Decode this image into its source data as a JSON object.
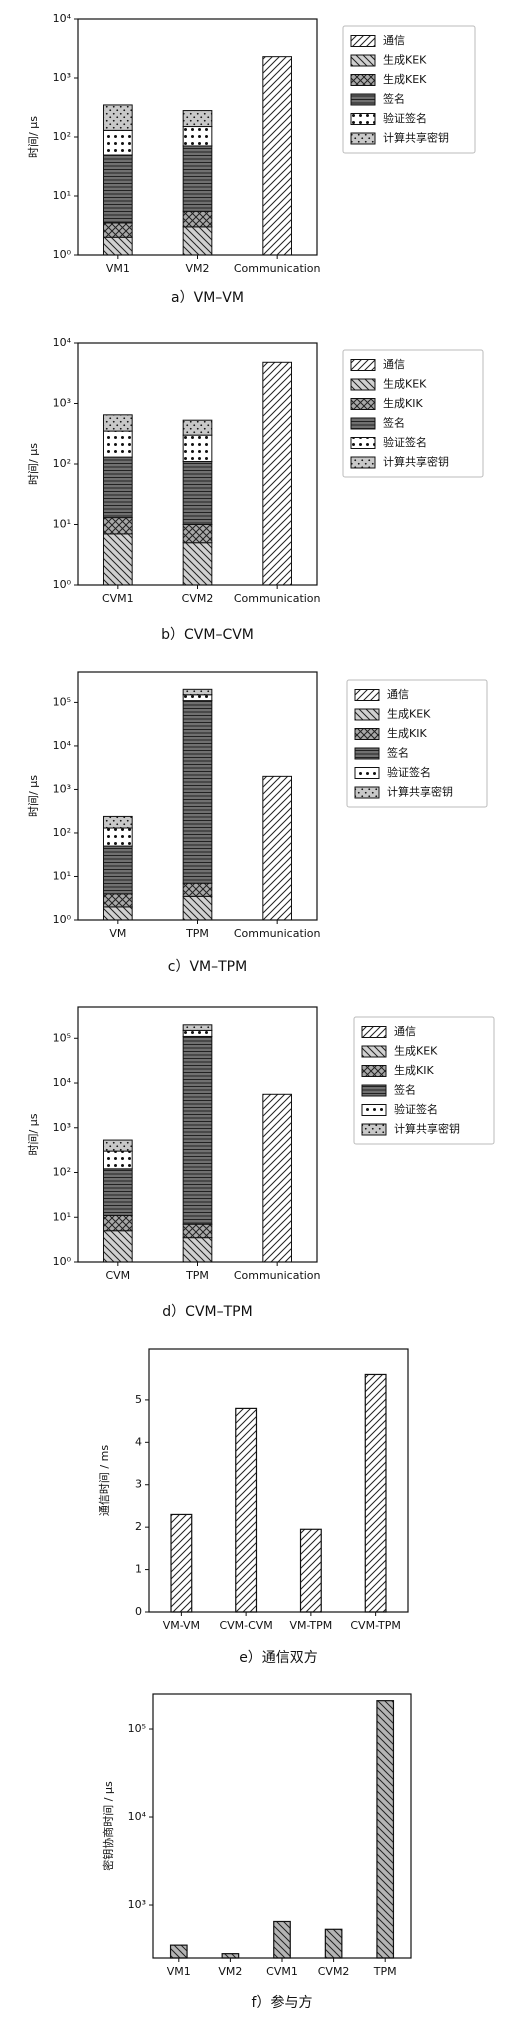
{
  "chart_data": [
    {
      "type": "bar",
      "stacked": true,
      "log": true,
      "caption": "a）VM–VM",
      "ylabel": "时间/ μs",
      "categories": [
        "VM1",
        "VM2",
        "Communication"
      ],
      "ylim": [
        1,
        10000
      ],
      "yticks": [
        {
          "value": 1,
          "label": "10⁰"
        },
        {
          "value": 10,
          "label": "10¹"
        },
        {
          "value": 100,
          "label": "10²"
        },
        {
          "value": 1000,
          "label": "10³"
        },
        {
          "value": 10000,
          "label": "10⁴"
        }
      ],
      "legend": "right",
      "series": [
        {
          "name": "通信",
          "color": "#ffffff",
          "hatch": "/",
          "values": [
            null,
            null,
            2300
          ]
        },
        {
          "name": "生成KEK",
          "color": "#d0d0d0",
          "hatch": "\\",
          "values": [
            2,
            3,
            null
          ]
        },
        {
          "name": "生成KEK",
          "color": "#a8a8a8",
          "hatch": "x",
          "values": [
            1.5,
            2.5,
            null
          ]
        },
        {
          "name": "签名",
          "color": "#707070",
          "hatch": "-",
          "values": [
            46,
            65,
            null
          ]
        },
        {
          "name": "验证签名",
          "color": "#ffffff",
          "hatch": "o",
          "values": [
            80,
            80,
            null
          ]
        },
        {
          "name": "计算共享密钥",
          "color": "#c8c8c8",
          "hatch": ".",
          "values": [
            220,
            130,
            null
          ]
        }
      ]
    },
    {
      "type": "bar",
      "stacked": true,
      "log": true,
      "caption": "b）CVM–CVM",
      "ylabel": "时间/ μs",
      "categories": [
        "CVM1",
        "CVM2",
        "Communication"
      ],
      "ylim": [
        1,
        10000
      ],
      "yticks": [
        {
          "value": 1,
          "label": "10⁰"
        },
        {
          "value": 10,
          "label": "10¹"
        },
        {
          "value": 100,
          "label": "10²"
        },
        {
          "value": 1000,
          "label": "10³"
        },
        {
          "value": 10000,
          "label": "10⁴"
        }
      ],
      "legend": "right",
      "series": [
        {
          "name": "通信",
          "color": "#ffffff",
          "hatch": "/",
          "values": [
            null,
            null,
            4800
          ]
        },
        {
          "name": "生成KEK",
          "color": "#d0d0d0",
          "hatch": "\\",
          "values": [
            7,
            5,
            null
          ]
        },
        {
          "name": "生成KIK",
          "color": "#a8a8a8",
          "hatch": "x",
          "values": [
            6,
            5,
            null
          ]
        },
        {
          "name": "签名",
          "color": "#707070",
          "hatch": "-",
          "values": [
            117,
            100,
            null
          ]
        },
        {
          "name": "验证签名",
          "color": "#ffffff",
          "hatch": "o",
          "values": [
            220,
            190,
            null
          ]
        },
        {
          "name": "计算共享密钥",
          "color": "#c8c8c8",
          "hatch": ".",
          "values": [
            300,
            230,
            null
          ]
        }
      ]
    },
    {
      "type": "bar",
      "stacked": true,
      "log": true,
      "caption": "c）VM–TPM",
      "ylabel": "时间/ μs",
      "categories": [
        "VM",
        "TPM",
        "Communication"
      ],
      "ylim": [
        1,
        500000
      ],
      "yticks": [
        {
          "value": 1,
          "label": "10⁰"
        },
        {
          "value": 10,
          "label": "10¹"
        },
        {
          "value": 100,
          "label": "10²"
        },
        {
          "value": 1000,
          "label": "10³"
        },
        {
          "value": 10000,
          "label": "10⁴"
        },
        {
          "value": 100000,
          "label": "10⁵"
        }
      ],
      "legend": "right",
      "series": [
        {
          "name": "通信",
          "color": "#ffffff",
          "hatch": "/",
          "values": [
            null,
            null,
            2000
          ]
        },
        {
          "name": "生成KEK",
          "color": "#d0d0d0",
          "hatch": "\\",
          "values": [
            2,
            3.5,
            null
          ]
        },
        {
          "name": "生成KIK",
          "color": "#a8a8a8",
          "hatch": "x",
          "values": [
            2,
            3.5,
            null
          ]
        },
        {
          "name": "签名",
          "color": "#707070",
          "hatch": "-",
          "values": [
            46,
            110000,
            null
          ]
        },
        {
          "name": "验证签名",
          "color": "#ffffff",
          "hatch": "o",
          "values": [
            80,
            40000,
            null
          ]
        },
        {
          "name": "计算共享密钥",
          "color": "#c8c8c8",
          "hatch": ".",
          "values": [
            110,
            50000,
            null
          ]
        }
      ]
    },
    {
      "type": "bar",
      "stacked": true,
      "log": true,
      "caption": "d）CVM–TPM",
      "ylabel": "时间/ μs",
      "categories": [
        "CVM",
        "TPM",
        "Communication"
      ],
      "ylim": [
        1,
        500000
      ],
      "yticks": [
        {
          "value": 1,
          "label": "10⁰"
        },
        {
          "value": 10,
          "label": "10¹"
        },
        {
          "value": 100,
          "label": "10²"
        },
        {
          "value": 1000,
          "label": "10³"
        },
        {
          "value": 10000,
          "label": "10⁴"
        },
        {
          "value": 100000,
          "label": "10⁵"
        }
      ],
      "legend": "right",
      "series": [
        {
          "name": "通信",
          "color": "#ffffff",
          "hatch": "/",
          "values": [
            null,
            null,
            5600
          ]
        },
        {
          "name": "生成KEK",
          "color": "#d0d0d0",
          "hatch": "\\",
          "values": [
            5,
            3.5,
            null
          ]
        },
        {
          "name": "生成KIK",
          "color": "#a8a8a8",
          "hatch": "x",
          "values": [
            6,
            3.5,
            null
          ]
        },
        {
          "name": "签名",
          "color": "#707070",
          "hatch": "-",
          "values": [
            110,
            110000,
            null
          ]
        },
        {
          "name": "验证签名",
          "color": "#ffffff",
          "hatch": "o",
          "values": [
            180,
            40000,
            null
          ]
        },
        {
          "name": "计算共享密钥",
          "color": "#c8c8c8",
          "hatch": ".",
          "values": [
            230,
            50000,
            null
          ]
        }
      ]
    },
    {
      "type": "bar",
      "log": false,
      "caption": "e）通信双方",
      "ylabel": "通信时间 / ms",
      "categories": [
        "VM-VM",
        "CVM-CVM",
        "VM-TPM",
        "CVM-TPM"
      ],
      "values": [
        2.3,
        4.8,
        1.95,
        5.6
      ],
      "color": "#ffffff",
      "hatch": "/",
      "ylim": [
        0,
        6.2
      ],
      "yticks": [
        0,
        1,
        2,
        3,
        4,
        5
      ]
    },
    {
      "type": "bar",
      "log": true,
      "caption": "f）参与方",
      "ylabel": "密钥协商时间 / μs",
      "categories": [
        "VM1",
        "VM2",
        "CVM1",
        "CVM2",
        "TPM"
      ],
      "values": [
        350,
        280,
        650,
        530,
        210000
      ],
      "color": "#b4b4b4",
      "hatch": "\\",
      "ylim": [
        250,
        250000
      ],
      "yticks": [
        {
          "value": 1000,
          "label": "10³"
        },
        {
          "value": 10000,
          "label": "10⁴"
        },
        {
          "value": 100000,
          "label": "10⁵"
        }
      ]
    }
  ]
}
